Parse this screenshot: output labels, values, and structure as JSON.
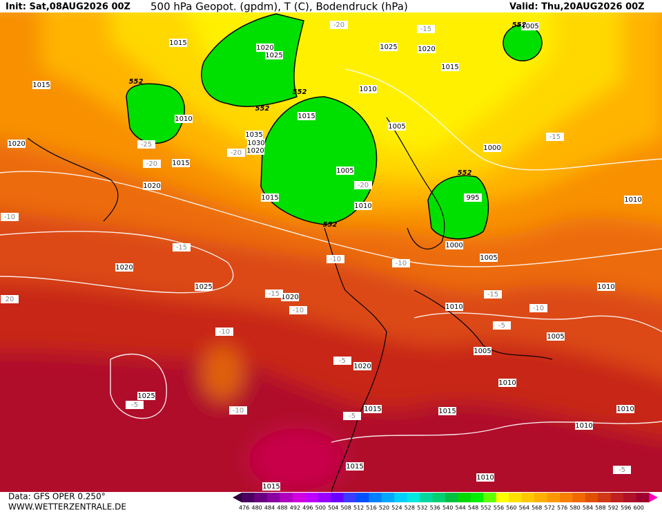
{
  "header": {
    "init": "Init: Sat,08AUG2026 00Z",
    "title": "500 hPa Geopot. (gpdm), T (C), Bodendruck (hPa)",
    "valid": "Valid: Thu,20AUG2026 00Z"
  },
  "footer": {
    "data": "Data: GFS OPER 0.250°",
    "site": "WWW.WETTERZENTRALE.DE"
  },
  "colorbar": {
    "values": [
      476,
      480,
      484,
      488,
      492,
      496,
      500,
      504,
      508,
      512,
      516,
      520,
      524,
      528,
      532,
      536,
      540,
      544,
      548,
      552,
      556,
      560,
      564,
      568,
      572,
      576,
      580,
      584,
      588,
      592,
      596,
      600
    ],
    "colors": [
      "#4b0060",
      "#6a0080",
      "#8a00a0",
      "#b000c0",
      "#d000e0",
      "#c000ff",
      "#9a00ff",
      "#6a00ff",
      "#3c3cff",
      "#0050ff",
      "#0080ff",
      "#00a8ff",
      "#00d0ff",
      "#00e8e0",
      "#00d8a0",
      "#00d070",
      "#00c040",
      "#00d800",
      "#00f000",
      "#60ff00",
      "#ffff00",
      "#ffe000",
      "#ffc800",
      "#ffb000",
      "#ff9800",
      "#f88000",
      "#f06800",
      "#e05000",
      "#d03818",
      "#c02020",
      "#b01028",
      "#a00030"
    ]
  },
  "isobar_labels": [
    1015,
    1020,
    1025,
    1015,
    1010,
    1015,
    1020,
    1020,
    1035,
    1030,
    1020,
    1015,
    1005,
    1010,
    1015,
    1010,
    1025,
    1020,
    1015,
    1005,
    1005,
    1000,
    995,
    1000,
    1005,
    1010,
    1010,
    1010,
    1005,
    1005,
    1010,
    1020,
    1025,
    1020,
    1020,
    1025,
    1015,
    1015,
    1010,
    1010,
    1015,
    1010,
    1015
  ],
  "temp_labels": [
    -20,
    -15,
    -25,
    -20,
    -20,
    -20,
    -15,
    -10,
    -15,
    -10,
    -10,
    -15,
    -10,
    -15,
    -10,
    -5,
    -10,
    -5,
    -10,
    -5,
    -5,
    20,
    -5
  ],
  "height_labels": [
    552,
    552,
    552,
    552,
    552,
    552
  ]
}
